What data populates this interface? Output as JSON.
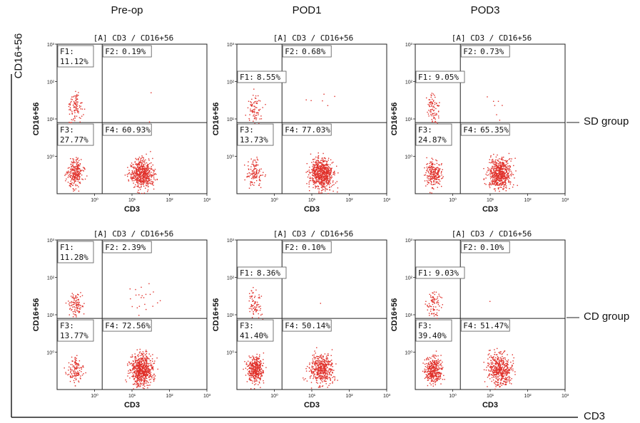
{
  "columns": [
    "Pre-op",
    "POD1",
    "POD3"
  ],
  "rows": [
    "SD group",
    "CD group"
  ],
  "outer_axes": {
    "y": "CD16+56",
    "x": "CD3"
  },
  "chart_data": [
    {
      "type": "scatter",
      "row": "SD group",
      "column": "Pre-op",
      "title": "[A] CD3 / CD16+56",
      "xlabel": "CD3",
      "ylabel": "CD16+56",
      "xscale": "log",
      "yscale": "log",
      "xlim": [
        0.1,
        1000
      ],
      "ylim": [
        0.1,
        1000
      ],
      "x_ticks": [
        "10⁰",
        "10¹",
        "10²",
        "10³"
      ],
      "y_ticks": [
        "10⁰",
        "10¹",
        "10²",
        "10³"
      ],
      "quadrants": [
        {
          "label": "F1:",
          "value": "11.12%"
        },
        {
          "label": "F2:",
          "value": "0.19%"
        },
        {
          "label": "F3:",
          "value": "27.77%"
        },
        {
          "label": "F4:",
          "value": "60.93%"
        }
      ]
    },
    {
      "type": "scatter",
      "row": "SD group",
      "column": "POD1",
      "title": "[A] CD3 / CD16+56",
      "xlabel": "CD3",
      "ylabel": "CD16+56",
      "xscale": "log",
      "yscale": "log",
      "xlim": [
        0.1,
        1000
      ],
      "ylim": [
        0.1,
        1000
      ],
      "x_ticks": [
        "10⁰",
        "10¹",
        "10²",
        "10³"
      ],
      "y_ticks": [
        "10⁰",
        "10¹",
        "10²",
        "10³"
      ],
      "quadrants": [
        {
          "label": "F1:",
          "value": "8.55%"
        },
        {
          "label": "F2:",
          "value": "0.68%"
        },
        {
          "label": "F3:",
          "value": "13.73%"
        },
        {
          "label": "F4:",
          "value": "77.03%"
        }
      ]
    },
    {
      "type": "scatter",
      "row": "SD group",
      "column": "POD3",
      "title": "[A] CD3 / CD16+56",
      "xlabel": "CD3",
      "ylabel": "CD16+56",
      "xscale": "log",
      "yscale": "log",
      "xlim": [
        0.1,
        1000
      ],
      "ylim": [
        0.1,
        1000
      ],
      "x_ticks": [
        "10⁰",
        "10¹",
        "10²",
        "10³"
      ],
      "y_ticks": [
        "10⁰",
        "10¹",
        "10²",
        "10³"
      ],
      "quadrants": [
        {
          "label": "F1:",
          "value": "9.05%"
        },
        {
          "label": "F2:",
          "value": "0.73%"
        },
        {
          "label": "F3:",
          "value": "24.87%"
        },
        {
          "label": "F4:",
          "value": "65.35%"
        }
      ]
    },
    {
      "type": "scatter",
      "row": "CD group",
      "column": "Pre-op",
      "title": "[A] CD3 / CD16+56",
      "xlabel": "CD3",
      "ylabel": "CD16+56",
      "xscale": "log",
      "yscale": "log",
      "xlim": [
        0.1,
        1000
      ],
      "ylim": [
        0.1,
        1000
      ],
      "x_ticks": [
        "10⁰",
        "10¹",
        "10²",
        "10³"
      ],
      "y_ticks": [
        "10⁰",
        "10¹",
        "10²",
        "10³"
      ],
      "quadrants": [
        {
          "label": "F1:",
          "value": "11.28%"
        },
        {
          "label": "F2:",
          "value": "2.39%"
        },
        {
          "label": "F3:",
          "value": "13.77%"
        },
        {
          "label": "F4:",
          "value": "72.56%"
        }
      ]
    },
    {
      "type": "scatter",
      "row": "CD group",
      "column": "POD1",
      "title": "[A] CD3 / CD16+56",
      "xlabel": "CD3",
      "ylabel": "CD16+56",
      "xscale": "log",
      "yscale": "log",
      "xlim": [
        0.1,
        1000
      ],
      "ylim": [
        0.1,
        1000
      ],
      "x_ticks": [
        "10⁰",
        "10¹",
        "10²",
        "10³"
      ],
      "y_ticks": [
        "10⁰",
        "10¹",
        "10²",
        "10³"
      ],
      "quadrants": [
        {
          "label": "F1:",
          "value": "8.36%"
        },
        {
          "label": "F2:",
          "value": "0.10%"
        },
        {
          "label": "F3:",
          "value": "41.40%"
        },
        {
          "label": "F4:",
          "value": "50.14%"
        }
      ]
    },
    {
      "type": "scatter",
      "row": "CD group",
      "column": "POD3",
      "title": "[A] CD3 / CD16+56",
      "xlabel": "CD3",
      "ylabel": "CD16+56",
      "xscale": "log",
      "yscale": "log",
      "xlim": [
        0.1,
        1000
      ],
      "ylim": [
        0.1,
        1000
      ],
      "x_ticks": [
        "10⁰",
        "10¹",
        "10²",
        "10³"
      ],
      "y_ticks": [
        "10⁰",
        "10¹",
        "10²",
        "10³"
      ],
      "quadrants": [
        {
          "label": "F1:",
          "value": "9.03%"
        },
        {
          "label": "F2:",
          "value": "0.10%"
        },
        {
          "label": "F3:",
          "value": "39.40%"
        },
        {
          "label": "F4:",
          "value": "51.47%"
        }
      ]
    }
  ],
  "colors": {
    "dots": "#e0302a",
    "lines": "#222222"
  }
}
